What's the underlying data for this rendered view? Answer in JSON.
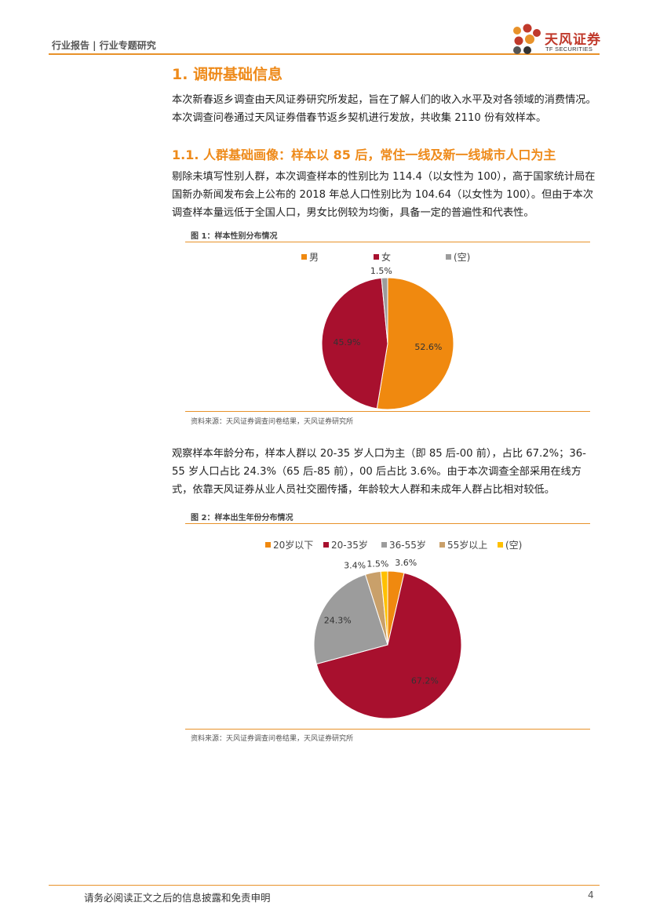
{
  "header": {
    "left_text": "行业报告 | 行业专题研究",
    "logo_cn": "天风证券",
    "logo_en": "TF SECURITIES"
  },
  "section1": {
    "title": "1. 调研基础信息",
    "intro": "本次新春返乡调查由天风证券研究所发起，旨在了解人们的收入水平及对各领域的消费情况。本次调查问卷通过天风证券借春节返乡契机进行发放，共收集 2110 份有效样本。"
  },
  "section1_1": {
    "title": "1.1. 人群基础画像：样本以 85 后，常住一线及新一线城市人口为主",
    "para1": "剔除未填写性别人群，本次调查样本的性别比为 114.4（以女性为 100），高于国家统计局在国新办新闻发布会上公布的 2018 年总人口性别比为 104.64（以女性为 100）。但由于本次调查样本量远低于全国人口，男女比例较为均衡，具备一定的普遍性和代表性。",
    "para2": "观察样本年龄分布，样本人群以 20-35 岁人口为主（即 85 后-00 前），占比 67.2%；36-55 岁人口占比 24.3%（65 后-85 前），00 后占比 3.6%。由于本次调查全部采用在线方式，依靠天风证券从业人员社交圈传播，年龄较大人群和未成年人群占比相对较低。"
  },
  "figure1": {
    "title": "图 1：样本性别分布情况",
    "source": "资料来源：天风证券调查问卷结果，天风证券研究所"
  },
  "figure2": {
    "title": "图 2：样本出生年份分布情况",
    "source": "资料来源：天风证券调查问卷结果，天风证券研究所"
  },
  "chart_data": [
    {
      "type": "pie",
      "categories": [
        "男",
        "女",
        "(空)"
      ],
      "values": [
        52.6,
        45.9,
        1.5
      ],
      "labels": [
        "52.6%",
        "45.9%",
        "1.5%"
      ],
      "colors": [
        "#f0890f",
        "#a8102e",
        "#9c9c9c"
      ],
      "legend": "top"
    },
    {
      "type": "pie",
      "categories": [
        "20岁以下",
        "20-35岁",
        "36-55岁",
        "55岁以上",
        "(空)"
      ],
      "values": [
        3.6,
        67.2,
        24.3,
        3.4,
        1.5
      ],
      "labels": [
        "3.6%",
        "67.2%",
        "24.3%",
        "3.4%",
        "1.5%"
      ],
      "colors": [
        "#f0890f",
        "#a8102e",
        "#9c9c9c",
        "#c9a06a",
        "#ffc000"
      ],
      "legend": "top"
    }
  ],
  "footer": {
    "disclaimer": "请务必阅读正文之后的信息披露和免责申明",
    "page": "4"
  }
}
